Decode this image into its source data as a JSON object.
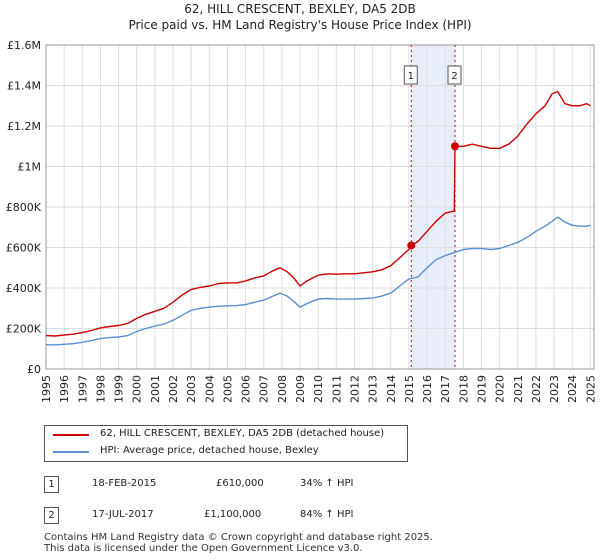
{
  "chart_data": {
    "type": "line",
    "title": "62, HILL CRESCENT, BEXLEY, DA5 2DB",
    "subtitle": "Price paid vs. HM Land Registry's House Price Index (HPI)",
    "x_ticks": [
      "1995",
      "1996",
      "1997",
      "1998",
      "1999",
      "2000",
      "2001",
      "2002",
      "2003",
      "2004",
      "2005",
      "2006",
      "2007",
      "2008",
      "2009",
      "2010",
      "2011",
      "2012",
      "2013",
      "2014",
      "2015",
      "2016",
      "2017",
      "2018",
      "2019",
      "2020",
      "2021",
      "2022",
      "2023",
      "2024",
      "2025"
    ],
    "y_ticks": [
      "£0",
      "£200K",
      "£400K",
      "£600K",
      "£800K",
      "£1M",
      "£1.2M",
      "£1.4M",
      "£1.6M"
    ],
    "xlim": [
      1995,
      2025.2
    ],
    "ylim": [
      0,
      1600000
    ],
    "grid": true,
    "highlight_range": [
      2015.13,
      2017.54
    ],
    "series": [
      {
        "name": "62, HILL CRESCENT, BEXLEY, DA5 2DB (detached house)",
        "color": "#cc0000",
        "x": [
          1995.0,
          1995.5,
          1996.0,
          1996.5,
          1997.0,
          1997.5,
          1998.0,
          1998.5,
          1999.0,
          1999.5,
          2000.0,
          2000.5,
          2001.0,
          2001.5,
          2002.0,
          2002.5,
          2003.0,
          2003.5,
          2004.0,
          2004.5,
          2005.0,
          2005.5,
          2006.0,
          2006.5,
          2007.0,
          2007.5,
          2007.9,
          2008.3,
          2008.7,
          2009.0,
          2009.3,
          2009.7,
          2010.0,
          2010.5,
          2011.0,
          2011.5,
          2012.0,
          2012.5,
          2013.0,
          2013.5,
          2014.0,
          2014.5,
          2015.0,
          2015.13,
          2015.5,
          2016.0,
          2016.5,
          2017.0,
          2017.5,
          2017.54,
          2018.0,
          2018.5,
          2019.0,
          2019.5,
          2020.0,
          2020.5,
          2021.0,
          2021.5,
          2022.0,
          2022.5,
          2022.9,
          2023.2,
          2023.6,
          2024.0,
          2024.4,
          2024.8,
          2025.0
        ],
        "values": [
          165000,
          163000,
          168000,
          172000,
          180000,
          190000,
          203000,
          210000,
          215000,
          225000,
          250000,
          270000,
          285000,
          300000,
          330000,
          365000,
          393000,
          403000,
          410000,
          422000,
          425000,
          425000,
          435000,
          450000,
          460000,
          485000,
          500000,
          480000,
          445000,
          410000,
          430000,
          450000,
          463000,
          470000,
          468000,
          470000,
          470000,
          475000,
          480000,
          490000,
          510000,
          550000,
          590000,
          610000,
          630000,
          680000,
          730000,
          770000,
          780000,
          1100000,
          1100000,
          1110000,
          1100000,
          1090000,
          1090000,
          1110000,
          1150000,
          1210000,
          1260000,
          1300000,
          1360000,
          1370000,
          1310000,
          1300000,
          1300000,
          1310000,
          1300000
        ]
      },
      {
        "name": "HPI: Average price, detached house, Bexley",
        "color": "#5b8fd0",
        "x": [
          1995.0,
          1995.5,
          1996.0,
          1996.5,
          1997.0,
          1997.5,
          1998.0,
          1998.5,
          1999.0,
          1999.5,
          2000.0,
          2000.5,
          2001.0,
          2001.5,
          2002.0,
          2002.5,
          2003.0,
          2003.5,
          2004.0,
          2004.5,
          2005.0,
          2005.5,
          2006.0,
          2006.5,
          2007.0,
          2007.5,
          2007.9,
          2008.3,
          2008.7,
          2009.0,
          2009.3,
          2009.7,
          2010.0,
          2010.5,
          2011.0,
          2011.5,
          2012.0,
          2012.5,
          2013.0,
          2013.5,
          2014.0,
          2014.5,
          2015.0,
          2015.5,
          2016.0,
          2016.5,
          2017.0,
          2017.5,
          2018.0,
          2018.5,
          2019.0,
          2019.5,
          2020.0,
          2020.5,
          2021.0,
          2021.5,
          2022.0,
          2022.5,
          2022.9,
          2023.2,
          2023.6,
          2024.0,
          2024.4,
          2024.8,
          2025.0
        ],
        "values": [
          120000,
          119000,
          122000,
          125000,
          132000,
          140000,
          150000,
          155000,
          158000,
          165000,
          185000,
          200000,
          212000,
          222000,
          240000,
          265000,
          290000,
          300000,
          305000,
          310000,
          312000,
          313000,
          318000,
          330000,
          340000,
          360000,
          375000,
          360000,
          330000,
          305000,
          320000,
          335000,
          345000,
          348000,
          345000,
          345000,
          345000,
          348000,
          350000,
          360000,
          375000,
          410000,
          445000,
          455000,
          500000,
          540000,
          560000,
          575000,
          590000,
          595000,
          595000,
          590000,
          595000,
          610000,
          625000,
          650000,
          680000,
          705000,
          730000,
          750000,
          725000,
          710000,
          705000,
          705000,
          710000
        ]
      }
    ],
    "sales": [
      {
        "id": "1",
        "x": 2015.13,
        "value": 610000
      },
      {
        "id": "2",
        "x": 2017.54,
        "value": 1100000
      }
    ]
  },
  "legend": {
    "series1_label": "62, HILL CRESCENT, BEXLEY, DA5 2DB (detached house)",
    "series2_label": "HPI: Average price, detached house, Bexley"
  },
  "transactions": [
    {
      "id": "1",
      "date": "18-FEB-2015",
      "price": "£610,000",
      "hpi": "34% ↑ HPI"
    },
    {
      "id": "2",
      "date": "17-JUL-2017",
      "price": "£1,100,000",
      "hpi": "84% ↑ HPI"
    }
  ],
  "footer": {
    "line1": "Contains HM Land Registry data © Crown copyright and database right 2025.",
    "line2": "This data is licensed under the Open Government Licence v3.0."
  },
  "colors": {
    "property": "#cc0000",
    "hpi": "#5b8fd0",
    "highlight": "#e8eef9"
  }
}
